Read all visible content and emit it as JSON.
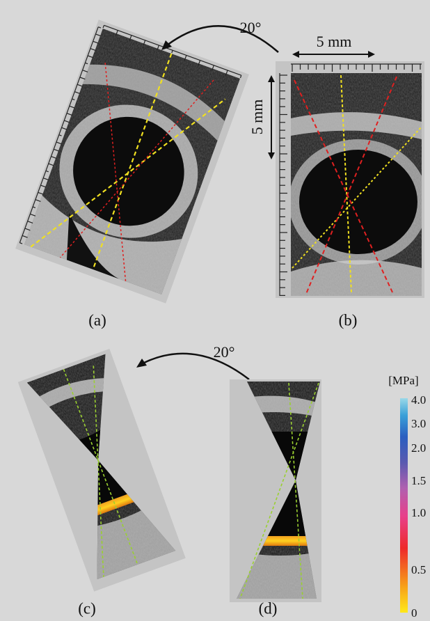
{
  "annotations": {
    "rotation_top": "20°",
    "rotation_bottom": "20°",
    "scale_horizontal": "5 mm",
    "scale_vertical": "5 mm"
  },
  "panels": [
    {
      "label": "(a)"
    },
    {
      "label": "(b)"
    },
    {
      "label": "(c)"
    },
    {
      "label": "(d)"
    }
  ],
  "colorbar": {
    "unit": "[MPa]",
    "tick_labels": [
      "4.0",
      "3.0",
      "2.0",
      "1.5",
      "1.0",
      "0.5",
      "0"
    ]
  }
}
